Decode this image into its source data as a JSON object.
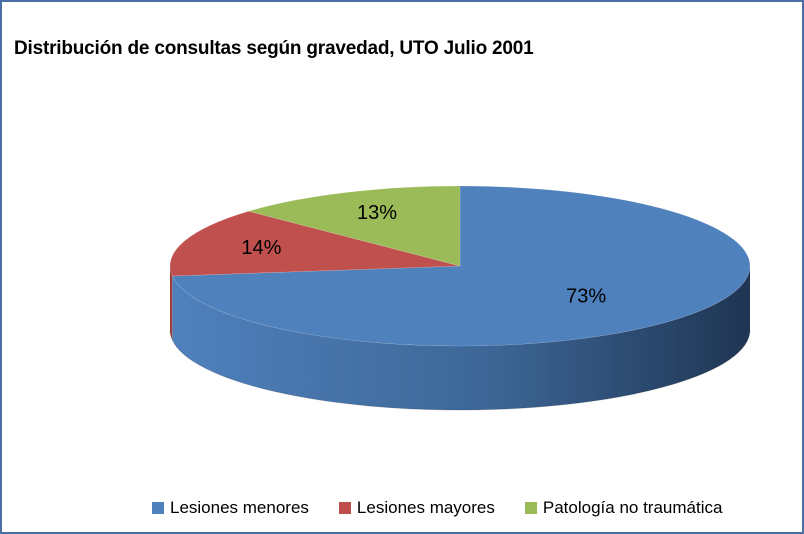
{
  "chart_data": {
    "type": "pie",
    "title": "Distribución de consultas según gravedad, UTO Julio 2001",
    "slices": [
      {
        "label": "Lesiones menores",
        "value": 73,
        "data_label": "73%",
        "color": "#4f81bd"
      },
      {
        "label": "Lesiones mayores",
        "value": 14,
        "data_label": "14%",
        "color": "#c0504d"
      },
      {
        "label": "Patología no traumática",
        "value": 13,
        "data_label": "13%",
        "color": "#9bbb59"
      }
    ],
    "legend_position": "bottom",
    "style": "3d-pie"
  }
}
